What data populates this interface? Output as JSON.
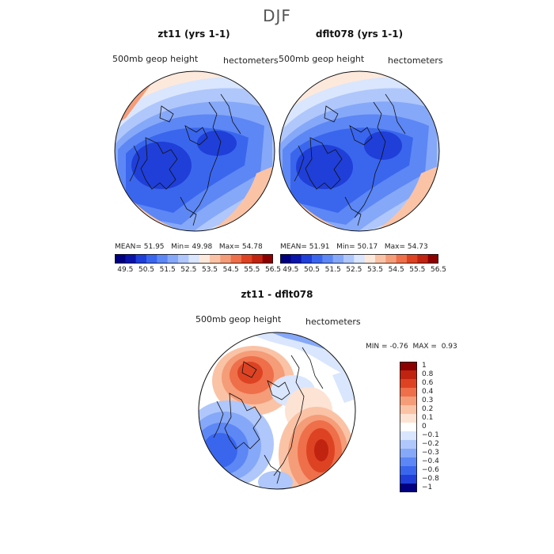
{
  "figure": {
    "season": "DJF"
  },
  "panels": [
    {
      "title": "zt11 (yrs 1-1)",
      "field": "500mb geop height",
      "units": "hectometers",
      "stats": {
        "mean_label": "MEAN=",
        "mean": "51.95",
        "min_label": "Min=",
        "min": "49.98",
        "max_label": "Max=",
        "max": "54.78"
      }
    },
    {
      "title": "dflt078 (yrs 1-1)",
      "field": "500mb geop height",
      "units": "hectometers",
      "stats": {
        "mean_label": "MEAN=",
        "mean": "51.91",
        "min_label": "Min=",
        "min": "50.17",
        "max_label": "Max=",
        "max": "54.73"
      }
    }
  ],
  "diff_panel": {
    "title": "zt11 - dflt078",
    "field": "500mb geop height",
    "units": "hectometers",
    "stats": {
      "min_label": "MIN =",
      "min": "-0.76",
      "max_label": "MAX =",
      "max": "0.93"
    }
  },
  "colorbar_main": {
    "tick_labels": [
      "49.5",
      "50.5",
      "51.5",
      "52.5",
      "53.5",
      "54.5",
      "55.5",
      "56.5"
    ],
    "colors": [
      "#000080",
      "#0a14a8",
      "#1f3fd8",
      "#3a66ee",
      "#5c87f5",
      "#86a8f8",
      "#afc7fb",
      "#d9e6fd",
      "#fde9dc",
      "#fac3a6",
      "#f59c78",
      "#ee6f4a",
      "#dd4323",
      "#c0230f",
      "#8b0000"
    ]
  },
  "colorbar_diff": {
    "levels": [
      "1",
      "0.8",
      "0.6",
      "0.4",
      "0.3",
      "0.2",
      "0.1",
      "0",
      "−0.1",
      "−0.2",
      "−0.3",
      "−0.4",
      "−0.6",
      "−0.8",
      "−1"
    ],
    "colors": [
      "#8b0000",
      "#c0230f",
      "#dd4323",
      "#ee6f4a",
      "#f59c78",
      "#fac3a6",
      "#fde3d3",
      "#ffffff",
      "#d9e6fd",
      "#afc7fb",
      "#86a8f8",
      "#5c87f5",
      "#3a66ee",
      "#1f3fd8",
      "#000080"
    ]
  },
  "chart_data": {
    "type": "heatmap",
    "maps": [
      {
        "title": "zt11 (yrs 1-1)",
        "variable": "500mb geop height",
        "units": "hectometers",
        "mean": 51.95,
        "min": 49.98,
        "max": 54.78,
        "levels": [
          49.5,
          50.5,
          51.5,
          52.5,
          53.5,
          54.5,
          55.5,
          56.5
        ]
      },
      {
        "title": "dflt078 (yrs 1-1)",
        "variable": "500mb geop height",
        "units": "hectometers",
        "mean": 51.91,
        "min": 50.17,
        "max": 54.73,
        "levels": [
          49.5,
          50.5,
          51.5,
          52.5,
          53.5,
          54.5,
          55.5,
          56.5
        ]
      },
      {
        "title": "zt11 - dflt078",
        "variable": "500mb geop height",
        "units": "hectometers",
        "min": -0.76,
        "max": 0.93,
        "levels": [
          -1,
          -0.8,
          -0.6,
          -0.4,
          -0.3,
          -0.2,
          -0.1,
          0,
          0.1,
          0.2,
          0.3,
          0.4,
          0.6,
          0.8,
          1
        ]
      }
    ]
  }
}
